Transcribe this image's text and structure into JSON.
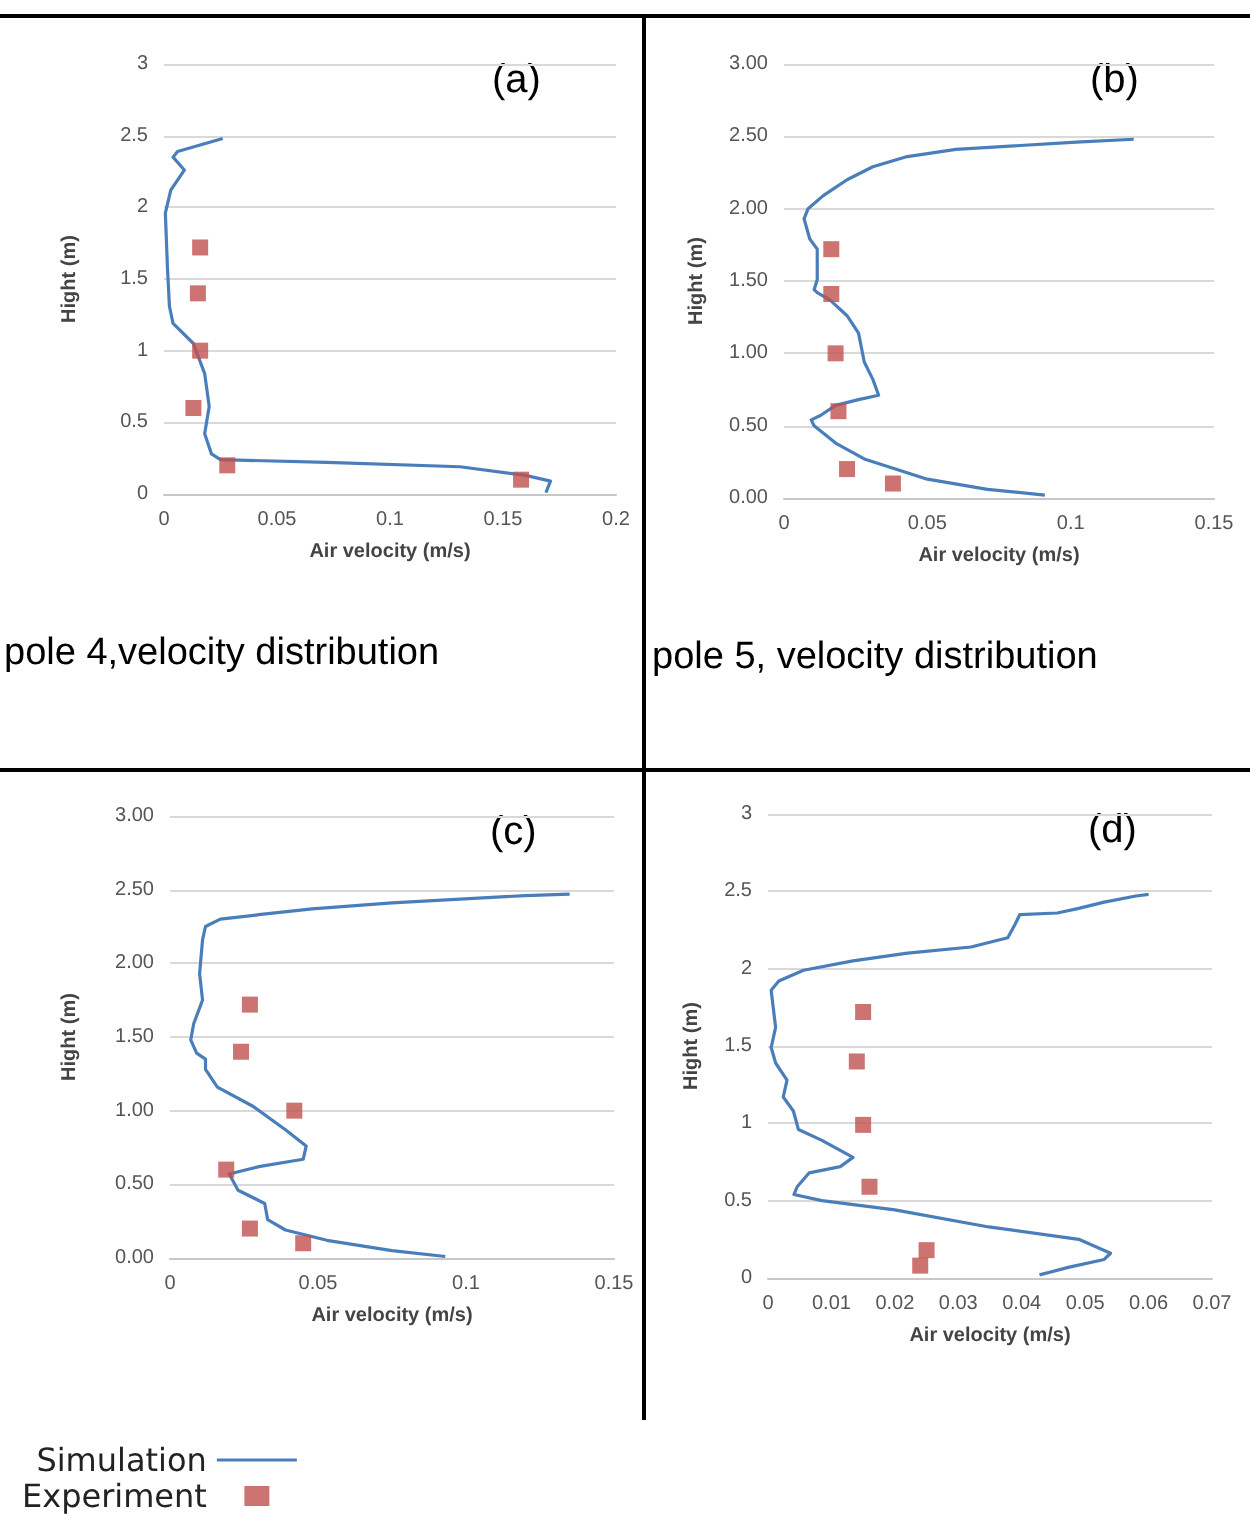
{
  "chart_data": [
    {
      "type": "line",
      "xlabel": "Air velocity (m/s)",
      "ylabel": "Hight (m)",
      "annotations": [
        "(a)",
        "pole 4,velocity distribution"
      ],
      "xlim": [
        0,
        0.2
      ],
      "xticks": [
        0,
        0.05,
        0.1,
        0.15,
        0.2
      ],
      "ylim": [
        0,
        3
      ],
      "yticks": [
        0,
        0.5,
        1,
        1.5,
        2,
        2.5,
        3
      ],
      "grid": "y",
      "series": [
        {
          "marker": "none",
          "color": "#4a7ebb",
          "x": [
            0.026,
            0.006,
            0.004,
            0.009,
            0.006,
            0.003,
            0.0006,
            0.0015,
            0.0024,
            0.004,
            0.013,
            0.018,
            0.02,
            0.018,
            0.021,
            0.025,
            0.072,
            0.131,
            0.16,
            0.171,
            0.169
          ],
          "values": [
            2.48,
            2.39,
            2.35,
            2.26,
            2.19,
            2.12,
            1.96,
            1.59,
            1.31,
            1.19,
            1.05,
            0.84,
            0.61,
            0.42,
            0.28,
            0.24,
            0.22,
            0.19,
            0.13,
            0.09,
            0.01
          ]
        },
        {
          "type": "scatter",
          "marker": "square",
          "color": "#c0504d",
          "x": [
            0.016,
            0.015,
            0.016,
            0.013,
            0.028,
            0.158
          ],
          "values": [
            1.72,
            1.4,
            1.0,
            0.6,
            0.2,
            0.1
          ]
        }
      ]
    },
    {
      "type": "line",
      "xlabel": "Air velocity (m/s)",
      "ylabel": "Hight (m)",
      "annotations": [
        "(b)",
        "pole 5, velocity distribution"
      ],
      "xlim": [
        0,
        0.15
      ],
      "xticks": [
        0,
        0.05,
        0.1,
        0.15
      ],
      "ylim": [
        0,
        3
      ],
      "yticks": [
        {
          "value": 0,
          "label": "0.00"
        },
        {
          "value": 0.5,
          "label": "0.50"
        },
        {
          "value": 1,
          "label": "1.00"
        },
        {
          "value": 1.5,
          "label": "1.50"
        },
        {
          "value": 2,
          "label": "2.00"
        },
        {
          "value": 2.5,
          "label": "2.50"
        },
        {
          "value": 3,
          "label": "3.00"
        }
      ],
      "grid": "y",
      "series": [
        {
          "marker": "none",
          "color": "#4a7ebb",
          "x": [
            0.122,
            0.102,
            0.06,
            0.043,
            0.031,
            0.022,
            0.0137,
            0.0084,
            0.007,
            0.009,
            0.0116,
            0.0116,
            0.0105,
            0.0116,
            0.016,
            0.022,
            0.026,
            0.028,
            0.031,
            0.033,
            0.026,
            0.018,
            0.0127,
            0.0095,
            0.0105,
            0.018,
            0.028,
            0.05,
            0.071,
            0.091
          ],
          "values": [
            2.48,
            2.46,
            2.41,
            2.36,
            2.29,
            2.2,
            2.09,
            2.0,
            1.93,
            1.79,
            1.72,
            1.51,
            1.44,
            1.42,
            1.37,
            1.26,
            1.14,
            0.94,
            0.82,
            0.71,
            0.68,
            0.64,
            0.57,
            0.54,
            0.5,
            0.38,
            0.27,
            0.13,
            0.06,
            0.02
          ]
        },
        {
          "type": "scatter",
          "marker": "square",
          "color": "#c0504d",
          "x": [
            0.0165,
            0.0165,
            0.018,
            0.019,
            0.022,
            0.038
          ],
          "values": [
            1.72,
            1.41,
            1.0,
            0.6,
            0.2,
            0.1
          ]
        }
      ]
    },
    {
      "type": "line",
      "xlabel": "Air velocity (m/s)",
      "ylabel": "Hight (m)",
      "annotations": [
        "(c)"
      ],
      "xlim": [
        0,
        0.15
      ],
      "xticks": [
        0,
        0.05,
        0.1,
        0.15
      ],
      "ylim": [
        0,
        3
      ],
      "yticks": [
        {
          "value": 0,
          "label": "0.00"
        },
        {
          "value": 0.5,
          "label": "0.50"
        },
        {
          "value": 1,
          "label": "1.00"
        },
        {
          "value": 1.5,
          "label": "1.50"
        },
        {
          "value": 2,
          "label": "2.00"
        },
        {
          "value": 2.5,
          "label": "2.50"
        },
        {
          "value": 3,
          "label": "3.00"
        }
      ],
      "grid": "y",
      "legend": "bottom left",
      "series": [
        {
          "name": "Simulation",
          "marker": "none",
          "color": "#4a7ebb",
          "x": [
            0.135,
            0.12,
            0.075,
            0.048,
            0.03,
            0.017,
            0.012,
            0.011,
            0.01,
            0.011,
            0.008,
            0.007,
            0.009,
            0.012,
            0.012,
            0.016,
            0.028,
            0.039,
            0.046,
            0.045,
            0.03,
            0.02,
            0.023,
            0.032,
            0.033,
            0.039,
            0.053,
            0.075,
            0.093
          ],
          "values": [
            2.47,
            2.46,
            2.41,
            2.37,
            2.33,
            2.3,
            2.25,
            2.16,
            1.93,
            1.75,
            1.59,
            1.48,
            1.39,
            1.35,
            1.28,
            1.16,
            1.03,
            0.87,
            0.76,
            0.67,
            0.62,
            0.57,
            0.46,
            0.37,
            0.26,
            0.19,
            0.12,
            0.05,
            0.01
          ]
        },
        {
          "type": "scatter",
          "name": "Experiment",
          "marker": "square",
          "color": "#c0504d",
          "x": [
            0.027,
            0.024,
            0.042,
            0.019,
            0.027,
            0.045
          ],
          "values": [
            1.72,
            1.4,
            1.0,
            0.6,
            0.2,
            0.1
          ]
        }
      ]
    },
    {
      "type": "line",
      "xlabel": "Air velocity (m/s)",
      "ylabel": "Hight (m)",
      "annotations": [
        "(d)"
      ],
      "xlim": [
        0,
        0.07
      ],
      "xticks": [
        0,
        0.01,
        0.02,
        0.03,
        0.04,
        0.05,
        0.06,
        0.07
      ],
      "ylim": [
        0,
        3
      ],
      "yticks": [
        0,
        0.5,
        1,
        1.5,
        2,
        2.5,
        3
      ],
      "grid": "y",
      "series": [
        {
          "marker": "none",
          "color": "#4a7ebb",
          "x": [
            0.06,
            0.058,
            0.053,
            0.049,
            0.0456,
            0.0397,
            0.039,
            0.0378,
            0.032,
            0.022,
            0.0134,
            0.0056,
            0.0017,
            0.0005,
            0.0012,
            0.0005,
            0.0012,
            0.003,
            0.0024,
            0.004,
            0.0048,
            0.0085,
            0.0134,
            0.0114,
            0.0065,
            0.0046,
            0.0041,
            0.0085,
            0.02,
            0.0348,
            0.049,
            0.054,
            0.053,
            0.0475,
            0.0428
          ],
          "values": [
            2.48,
            2.47,
            2.43,
            2.39,
            2.36,
            2.35,
            2.29,
            2.2,
            2.14,
            2.1,
            2.05,
            1.99,
            1.92,
            1.86,
            1.62,
            1.49,
            1.39,
            1.28,
            1.17,
            1.08,
            0.96,
            0.89,
            0.78,
            0.72,
            0.68,
            0.59,
            0.54,
            0.5,
            0.44,
            0.33,
            0.25,
            0.16,
            0.12,
            0.07,
            0.02
          ]
        },
        {
          "type": "scatter",
          "marker": "square",
          "color": "#c0504d",
          "x": [
            0.015,
            0.014,
            0.015,
            0.016,
            0.025,
            0.024
          ],
          "values": [
            1.72,
            1.4,
            0.99,
            0.59,
            0.18,
            0.08
          ]
        }
      ]
    }
  ]
}
